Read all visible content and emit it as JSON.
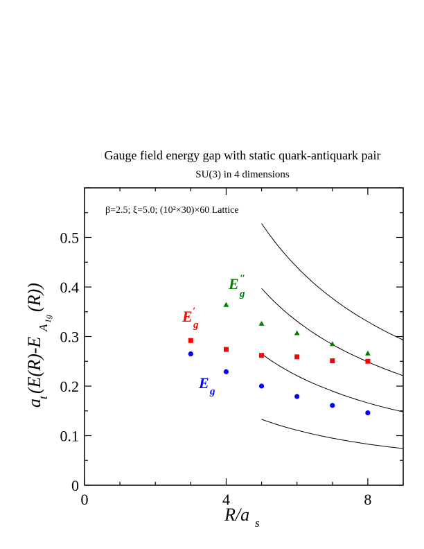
{
  "chart_data": {
    "type": "scatter",
    "title": "Gauge field energy gap with static quark-antiquark pair",
    "subtitle": "SU(3) in 4 dimensions",
    "annotation": "β=2.5; ξ=5.0; (10²×30)×60 Lattice",
    "xlabel": "R/a_s",
    "ylabel": "a_t(E(R)-E_A1g(R))",
    "xlim": [
      0,
      9
    ],
    "ylim": [
      0,
      0.6
    ],
    "x_ticks": [
      0,
      4,
      8
    ],
    "y_ticks": [
      0,
      0.1,
      0.2,
      0.3,
      0.4,
      0.5
    ],
    "grid": false,
    "series": [
      {
        "name": "E_g",
        "color": "#0000ff",
        "marker": "circle",
        "x": [
          3,
          4,
          5,
          6,
          7,
          8
        ],
        "y": [
          0.265,
          0.229,
          0.2,
          0.179,
          0.161,
          0.146
        ]
      },
      {
        "name": "E_g′",
        "color": "#ff0000",
        "marker": "square",
        "x": [
          3,
          4,
          5,
          6,
          7,
          8
        ],
        "y": [
          0.292,
          0.274,
          0.262,
          0.259,
          0.251,
          0.25
        ]
      },
      {
        "name": "E_g″",
        "color": "#008000",
        "marker": "triangle",
        "x": [
          4,
          5,
          6,
          7,
          8
        ],
        "y": [
          0.364,
          0.326,
          0.307,
          0.285,
          0.266
        ]
      }
    ],
    "curves": [
      {
        "x": [
          5,
          6,
          7,
          8,
          9
        ],
        "y": [
          0.133,
          0.111,
          0.095,
          0.083,
          0.074
        ]
      },
      {
        "x": [
          5,
          6,
          7,
          8,
          9
        ],
        "y": [
          0.265,
          0.221,
          0.19,
          0.166,
          0.148
        ]
      },
      {
        "x": [
          5,
          6,
          7,
          8,
          9
        ],
        "y": [
          0.397,
          0.331,
          0.284,
          0.249,
          0.221
        ]
      },
      {
        "x": [
          5,
          6,
          7,
          8,
          9
        ],
        "y": [
          0.528,
          0.44,
          0.377,
          0.33,
          0.293
        ]
      }
    ]
  }
}
